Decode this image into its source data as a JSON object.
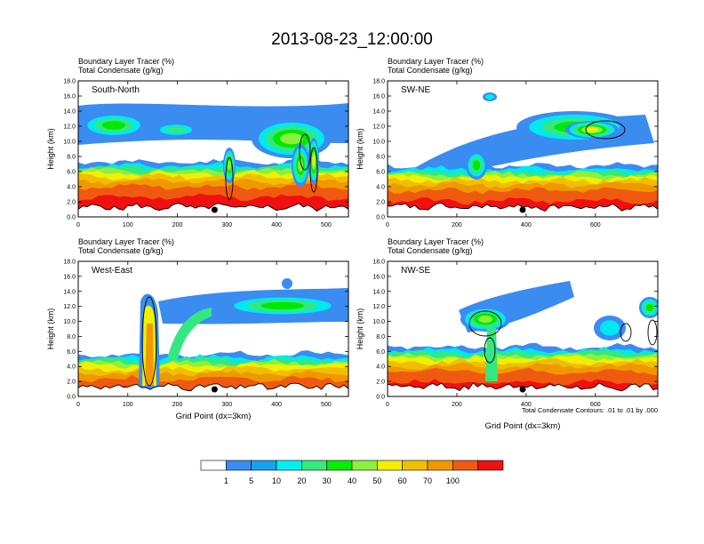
{
  "figure": {
    "title": "2013-08-23_12:00:00",
    "contour_note": "Total Condensate Contours: .01 to .01 by .000"
  },
  "chart_data": [
    {
      "type": "heatmap",
      "panel": "South-North",
      "title_line1": "Boundary Layer Tracer   (%)",
      "title_line2": "Total Condensate   (g/kg)",
      "label": "South-North",
      "ylabel": "Height (km)",
      "xlabel": "",
      "xlim": [
        0,
        545
      ],
      "ylim": [
        0,
        18
      ],
      "xticks": [
        "0",
        "100",
        "200",
        "300",
        "400",
        "500"
      ],
      "yticks": [
        "0.0",
        "2.0",
        "4.0",
        "6.0",
        "8.0",
        "10.0",
        "12.0",
        "14.0",
        "16.0",
        "18.0"
      ],
      "marker_x": 275
    },
    {
      "type": "heatmap",
      "panel": "SW-NE",
      "title_line1": "Boundary Layer Tracer   (%)",
      "title_line2": "Total Condensate   (g/kg)",
      "label": "SW-NE",
      "ylabel": "Height (km)",
      "xlabel": "",
      "xlim": [
        0,
        780
      ],
      "ylim": [
        0,
        18
      ],
      "xticks": [
        "0",
        "200",
        "400",
        "600"
      ],
      "yticks": [
        "0.0",
        "2.0",
        "4.0",
        "6.0",
        "8.0",
        "10.0",
        "12.0",
        "14.0",
        "16.0",
        "18.0"
      ],
      "marker_x": 390
    },
    {
      "type": "heatmap",
      "panel": "West-East",
      "title_line1": "Boundary Layer Tracer   (%)",
      "title_line2": "Total Condensate   (g/kg)",
      "label": "West-East",
      "ylabel": "Height (km)",
      "xlabel": "Grid Point (dx=3km)",
      "xlim": [
        0,
        545
      ],
      "ylim": [
        0,
        18
      ],
      "xticks": [
        "0",
        "100",
        "200",
        "300",
        "400",
        "500"
      ],
      "yticks": [
        "0.0",
        "2.0",
        "4.0",
        "6.0",
        "8.0",
        "10.0",
        "12.0",
        "14.0",
        "16.0",
        "18.0"
      ],
      "marker_x": 275
    },
    {
      "type": "heatmap",
      "panel": "NW-SE",
      "title_line1": "Boundary Layer Tracer   (%)",
      "title_line2": "Total Condensate   (g/kg)",
      "label": "NW-SE",
      "ylabel": "Height (km)",
      "xlabel": "Grid Point (dx=3km)",
      "xlim": [
        0,
        780
      ],
      "ylim": [
        0,
        18
      ],
      "xticks": [
        "0",
        "200",
        "400",
        "600"
      ],
      "yticks": [
        "0.0",
        "2.0",
        "4.0",
        "6.0",
        "8.0",
        "10.0",
        "12.0",
        "14.0",
        "16.0",
        "18.0"
      ],
      "marker_x": 390
    }
  ],
  "colorbar": {
    "labels": [
      "1",
      "5",
      "10",
      "20",
      "30",
      "40",
      "50",
      "60",
      "70",
      "100"
    ],
    "colors": [
      "#ffffff",
      "#3a8cf0",
      "#16a2f0",
      "#00f0f0",
      "#33ec7c",
      "#00f000",
      "#8cf03c",
      "#f0f000",
      "#f0c000",
      "#f09800",
      "#f05a10",
      "#f01010"
    ]
  }
}
